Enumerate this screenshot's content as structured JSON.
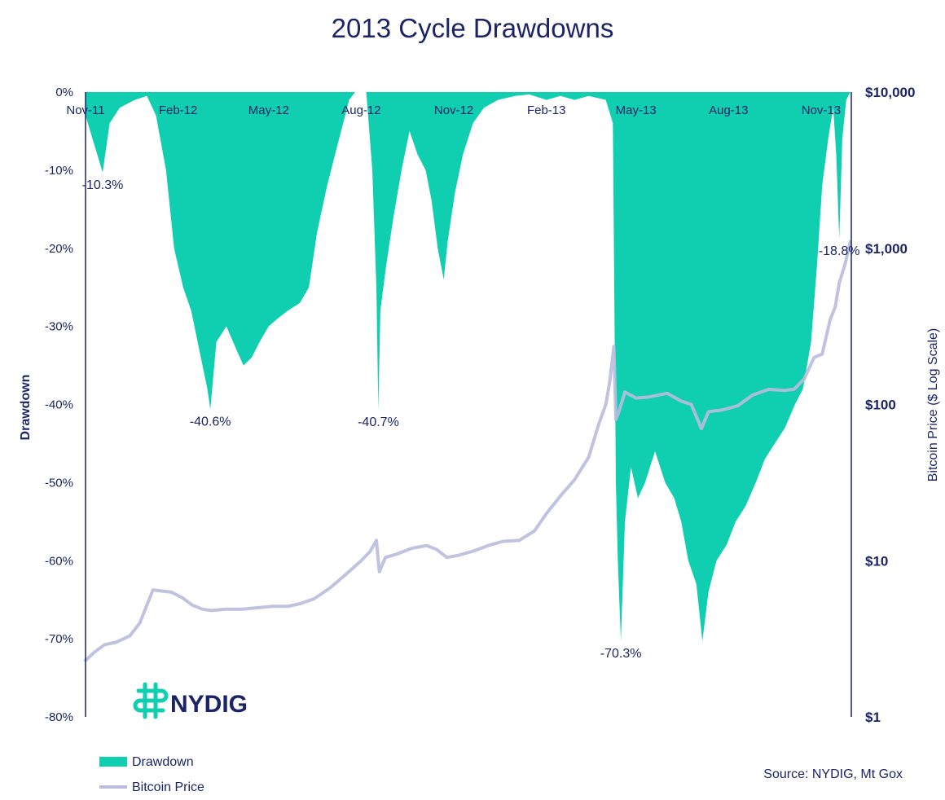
{
  "colors": {
    "drawdown": "#10cfb0",
    "price": "#b9bcdc",
    "axis": "#1b2467",
    "text": "#1b2467"
  },
  "logo": {
    "text": "NYDIG",
    "icon": "nydig-logo-icon"
  },
  "source": "Source: NYDIG, Mt Gox",
  "chart_data": {
    "type": "area",
    "title": "2013 Cycle Drawdowns",
    "ylabel": "Drawdown",
    "y2label": "Bitcoin Price ($ Log Scale)",
    "y2scale": "log",
    "ylim": [
      -80,
      0
    ],
    "y2lim": [
      1,
      10000
    ],
    "xlim": [
      "2011-11-01",
      "2013-12-01"
    ],
    "grid": false,
    "legend_position": "bottom-left",
    "x_ticks": [
      "Nov-11",
      "Feb-12",
      "May-12",
      "Aug-12",
      "Nov-12",
      "Feb-13",
      "May-13",
      "Aug-13",
      "Nov-13"
    ],
    "x_tick_dates": [
      "2011-11-01",
      "2012-02-01",
      "2012-05-01",
      "2012-08-01",
      "2012-11-01",
      "2013-02-01",
      "2013-05-01",
      "2013-08-01",
      "2013-11-01"
    ],
    "y_ticks": [
      "0%",
      "-10%",
      "-20%",
      "-30%",
      "-40%",
      "-50%",
      "-60%",
      "-70%",
      "-80%"
    ],
    "y_tick_values": [
      0,
      -10,
      -20,
      -30,
      -40,
      -50,
      -60,
      -70,
      -80
    ],
    "y2_ticks": [
      "$10,000",
      "$1,000",
      "$100",
      "$10",
      "$1"
    ],
    "y2_tick_values": [
      10000,
      1000,
      100,
      10,
      1
    ],
    "annotations": [
      {
        "text": "-10.3%",
        "date": "2011-11-18",
        "value": -10.3
      },
      {
        "text": "-40.6%",
        "date": "2012-03-04",
        "value": -40.6
      },
      {
        "text": "-40.7%",
        "date": "2012-08-18",
        "value": -40.7
      },
      {
        "text": "-70.3%",
        "date": "2013-04-16",
        "value": -70.3
      },
      {
        "text": "-18.8%",
        "date": "2013-11-19",
        "value": -18.8
      }
    ],
    "series": [
      {
        "name": "Drawdown",
        "kind": "area",
        "axis": "left",
        "points": [
          [
            "2011-11-01",
            -3
          ],
          [
            "2011-11-08",
            -6
          ],
          [
            "2011-11-18",
            -10.3
          ],
          [
            "2011-11-25",
            -4
          ],
          [
            "2011-12-05",
            -2
          ],
          [
            "2011-12-20",
            -1
          ],
          [
            "2012-01-01",
            -0.5
          ],
          [
            "2012-01-10",
            -3
          ],
          [
            "2012-01-20",
            -10
          ],
          [
            "2012-01-28",
            -20
          ],
          [
            "2012-02-06",
            -25
          ],
          [
            "2012-02-14",
            -28
          ],
          [
            "2012-02-22",
            -33
          ],
          [
            "2012-03-01",
            -38
          ],
          [
            "2012-03-04",
            -40.6
          ],
          [
            "2012-03-10",
            -32
          ],
          [
            "2012-03-20",
            -30
          ],
          [
            "2012-03-30",
            -33
          ],
          [
            "2012-04-06",
            -35
          ],
          [
            "2012-04-14",
            -34
          ],
          [
            "2012-04-22",
            -32
          ],
          [
            "2012-05-01",
            -30
          ],
          [
            "2012-05-10",
            -29
          ],
          [
            "2012-05-20",
            -28
          ],
          [
            "2012-06-01",
            -27
          ],
          [
            "2012-06-10",
            -25
          ],
          [
            "2012-06-18",
            -18
          ],
          [
            "2012-06-28",
            -12
          ],
          [
            "2012-07-06",
            -8
          ],
          [
            "2012-07-14",
            -4
          ],
          [
            "2012-07-20",
            -1
          ],
          [
            "2012-07-26",
            0
          ],
          [
            "2012-08-06",
            0
          ],
          [
            "2012-08-12",
            -10
          ],
          [
            "2012-08-16",
            -25
          ],
          [
            "2012-08-18",
            -40.7
          ],
          [
            "2012-08-20",
            -28
          ],
          [
            "2012-08-26",
            -22
          ],
          [
            "2012-09-02",
            -16
          ],
          [
            "2012-09-10",
            -10
          ],
          [
            "2012-09-18",
            -5
          ],
          [
            "2012-09-26",
            -8
          ],
          [
            "2012-10-04",
            -10
          ],
          [
            "2012-10-10",
            -14
          ],
          [
            "2012-10-16",
            -20
          ],
          [
            "2012-10-22",
            -24
          ],
          [
            "2012-10-26",
            -19
          ],
          [
            "2012-11-02",
            -13
          ],
          [
            "2012-11-10",
            -8
          ],
          [
            "2012-11-20",
            -4
          ],
          [
            "2012-12-01",
            -2
          ],
          [
            "2012-12-15",
            -1
          ],
          [
            "2013-01-01",
            -0.5
          ],
          [
            "2013-01-15",
            -0.3
          ],
          [
            "2013-02-01",
            -1
          ],
          [
            "2013-02-15",
            -0.5
          ],
          [
            "2013-03-01",
            -1
          ],
          [
            "2013-03-15",
            -0.5
          ],
          [
            "2013-04-01",
            -1
          ],
          [
            "2013-04-08",
            -4
          ],
          [
            "2013-04-11",
            -50
          ],
          [
            "2013-04-13",
            -60
          ],
          [
            "2013-04-16",
            -70.3
          ],
          [
            "2013-04-20",
            -55
          ],
          [
            "2013-04-26",
            -48
          ],
          [
            "2013-05-03",
            -52
          ],
          [
            "2013-05-10",
            -50
          ],
          [
            "2013-05-20",
            -46
          ],
          [
            "2013-05-30",
            -50
          ],
          [
            "2013-06-08",
            -52
          ],
          [
            "2013-06-15",
            -55
          ],
          [
            "2013-06-22",
            -60
          ],
          [
            "2013-06-30",
            -63
          ],
          [
            "2013-07-06",
            -70.3
          ],
          [
            "2013-07-12",
            -64
          ],
          [
            "2013-07-20",
            -60
          ],
          [
            "2013-07-30",
            -58
          ],
          [
            "2013-08-08",
            -55
          ],
          [
            "2013-08-18",
            -53
          ],
          [
            "2013-08-28",
            -50
          ],
          [
            "2013-09-06",
            -47
          ],
          [
            "2013-09-16",
            -45
          ],
          [
            "2013-09-26",
            -43
          ],
          [
            "2013-10-06",
            -40
          ],
          [
            "2013-10-14",
            -38
          ],
          [
            "2013-10-22",
            -32
          ],
          [
            "2013-10-28",
            -22
          ],
          [
            "2013-11-02",
            -12
          ],
          [
            "2013-11-08",
            -6
          ],
          [
            "2013-11-13",
            -2
          ],
          [
            "2013-11-16",
            -8
          ],
          [
            "2013-11-19",
            -18.8
          ],
          [
            "2013-11-22",
            -6
          ],
          [
            "2013-11-26",
            -1
          ],
          [
            "2013-11-30",
            0
          ]
        ]
      },
      {
        "name": "Bitcoin Price",
        "kind": "line",
        "axis": "right",
        "points": [
          [
            "2011-11-01",
            2.3
          ],
          [
            "2011-11-10",
            2.6
          ],
          [
            "2011-11-20",
            2.9
          ],
          [
            "2011-12-01",
            3.0
          ],
          [
            "2011-12-15",
            3.3
          ],
          [
            "2011-12-25",
            4.0
          ],
          [
            "2012-01-01",
            5.2
          ],
          [
            "2012-01-07",
            6.5
          ],
          [
            "2012-01-15",
            6.4
          ],
          [
            "2012-01-25",
            6.3
          ],
          [
            "2012-02-05",
            5.8
          ],
          [
            "2012-02-15",
            5.2
          ],
          [
            "2012-02-25",
            4.9
          ],
          [
            "2012-03-05",
            4.8
          ],
          [
            "2012-03-20",
            4.9
          ],
          [
            "2012-04-05",
            4.9
          ],
          [
            "2012-04-20",
            5.0
          ],
          [
            "2012-05-05",
            5.1
          ],
          [
            "2012-05-20",
            5.1
          ],
          [
            "2012-06-01",
            5.3
          ],
          [
            "2012-06-15",
            5.7
          ],
          [
            "2012-07-01",
            6.7
          ],
          [
            "2012-07-15",
            8.0
          ],
          [
            "2012-08-01",
            10
          ],
          [
            "2012-08-10",
            11.5
          ],
          [
            "2012-08-16",
            13.5
          ],
          [
            "2012-08-19",
            8.5
          ],
          [
            "2012-08-25",
            10.5
          ],
          [
            "2012-09-05",
            11
          ],
          [
            "2012-09-20",
            12
          ],
          [
            "2012-10-05",
            12.5
          ],
          [
            "2012-10-15",
            11.8
          ],
          [
            "2012-10-25",
            10.5
          ],
          [
            "2012-11-05",
            10.8
          ],
          [
            "2012-11-20",
            11.5
          ],
          [
            "2012-12-05",
            12.5
          ],
          [
            "2012-12-20",
            13.3
          ],
          [
            "2013-01-05",
            13.5
          ],
          [
            "2013-01-20",
            15.5
          ],
          [
            "2013-02-01",
            20
          ],
          [
            "2013-02-15",
            26
          ],
          [
            "2013-03-01",
            33
          ],
          [
            "2013-03-15",
            46
          ],
          [
            "2013-03-25",
            75
          ],
          [
            "2013-04-01",
            100
          ],
          [
            "2013-04-05",
            140
          ],
          [
            "2013-04-09",
            235
          ],
          [
            "2013-04-11",
            80
          ],
          [
            "2013-04-14",
            90
          ],
          [
            "2013-04-20",
            120
          ],
          [
            "2013-05-01",
            110
          ],
          [
            "2013-05-15",
            112
          ],
          [
            "2013-06-01",
            118
          ],
          [
            "2013-06-15",
            105
          ],
          [
            "2013-06-25",
            100
          ],
          [
            "2013-07-05",
            70
          ],
          [
            "2013-07-12",
            90
          ],
          [
            "2013-07-25",
            92
          ],
          [
            "2013-08-10",
            98
          ],
          [
            "2013-08-25",
            115
          ],
          [
            "2013-09-10",
            125
          ],
          [
            "2013-09-25",
            123
          ],
          [
            "2013-10-05",
            125
          ],
          [
            "2013-10-15",
            145
          ],
          [
            "2013-10-25",
            200
          ],
          [
            "2013-11-02",
            210
          ],
          [
            "2013-11-10",
            350
          ],
          [
            "2013-11-15",
            420
          ],
          [
            "2013-11-19",
            600
          ],
          [
            "2013-11-25",
            800
          ],
          [
            "2013-11-30",
            1100
          ]
        ]
      }
    ]
  }
}
